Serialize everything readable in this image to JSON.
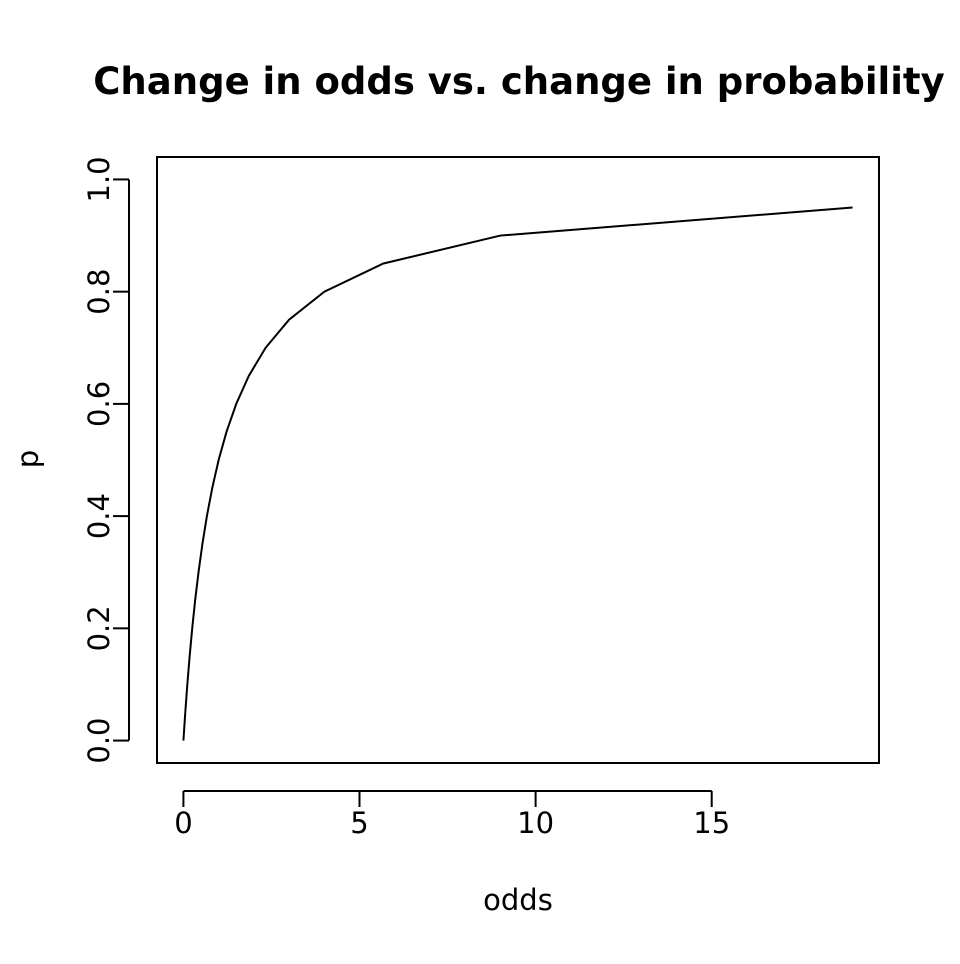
{
  "chart_data": {
    "type": "line",
    "title": "Change in odds vs. change in probability",
    "xlabel": "odds",
    "ylabel": "p",
    "xlim": [
      -0.75,
      19.75
    ],
    "ylim": [
      -0.04,
      1.04
    ],
    "x_ticks": [
      0,
      5,
      10,
      15
    ],
    "y_ticks": [
      0.0,
      0.2,
      0.4,
      0.6,
      0.8,
      1.0
    ],
    "x_tick_labels": [
      "0",
      "5",
      "10",
      "15"
    ],
    "y_tick_labels": [
      "0.0",
      "0.2",
      "0.4",
      "0.6",
      "0.8",
      "1.0"
    ],
    "grid": false,
    "line_color": "#000000",
    "series": [
      {
        "x": [
          0,
          0.0526,
          0.1111,
          0.1765,
          0.25,
          0.3333,
          0.4286,
          0.5385,
          0.6667,
          0.8182,
          1.0,
          1.2222,
          1.5,
          1.8571,
          2.3333,
          3.0,
          4.0,
          5.6667,
          9.0,
          19.0
        ],
        "y": [
          0.0,
          0.05,
          0.1,
          0.15,
          0.2,
          0.25,
          0.3,
          0.35,
          0.4,
          0.45,
          0.5,
          0.55,
          0.6,
          0.65,
          0.7,
          0.75,
          0.8,
          0.85,
          0.9,
          0.95
        ]
      }
    ]
  }
}
